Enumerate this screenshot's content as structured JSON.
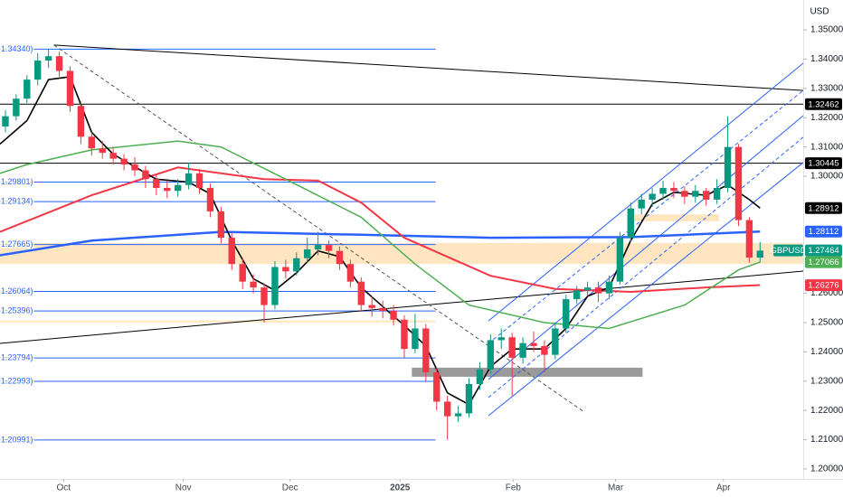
{
  "chart_data": {
    "type": "candlestick",
    "symbol": "GBPUSD",
    "currency": "USD",
    "up_color": "#089981",
    "down_color": "#f23645",
    "xlim": [
      -0.5,
      74
    ],
    "ylim": [
      1.1966,
      1.3602
    ],
    "yticks": [
      {
        "value": 1.35,
        "label": "1.35000"
      },
      {
        "value": 1.34,
        "label": "1.34000"
      },
      {
        "value": 1.33,
        "label": "1.33000"
      },
      {
        "value": 1.32,
        "label": "1.32000"
      },
      {
        "value": 1.31,
        "label": "1.31000"
      },
      {
        "value": 1.3,
        "label": "1.30000"
      },
      {
        "value": 1.26,
        "label": "1.26000"
      },
      {
        "value": 1.25,
        "label": "1.25000"
      },
      {
        "value": 1.24,
        "label": "1.24000"
      },
      {
        "value": 1.23,
        "label": "1.23000"
      },
      {
        "value": 1.22,
        "label": "1.22000"
      },
      {
        "value": 1.21,
        "label": "1.21000"
      },
      {
        "value": 1.2,
        "label": "1.20000"
      }
    ],
    "xticks": [
      {
        "value": 5.4,
        "label": "Oct"
      },
      {
        "value": 16.5,
        "label": "Nov"
      },
      {
        "value": 26.4,
        "label": "Dec"
      },
      {
        "value": 36.6,
        "label": "2025"
      },
      {
        "value": 47.1,
        "label": "Feb"
      },
      {
        "value": 56.6,
        "label": "Mar"
      },
      {
        "value": 66.6,
        "label": "Apr"
      }
    ],
    "ohlc": [
      [
        1.317,
        1.3225,
        1.315,
        1.3205
      ],
      [
        1.3205,
        1.328,
        1.319,
        1.3265
      ],
      [
        1.3265,
        1.3345,
        1.325,
        1.333
      ],
      [
        1.333,
        1.342,
        1.331,
        1.3395
      ],
      [
        1.3395,
        1.3434,
        1.337,
        1.341
      ],
      [
        1.341,
        1.3425,
        1.334,
        1.336
      ],
      [
        1.336,
        1.3375,
        1.322,
        1.324
      ],
      [
        1.324,
        1.3255,
        1.311,
        1.3135
      ],
      [
        1.3135,
        1.315,
        1.307,
        1.3095
      ],
      [
        1.3095,
        1.312,
        1.306,
        1.308
      ],
      [
        1.308,
        1.31,
        1.304,
        1.306
      ],
      [
        1.306,
        1.3075,
        1.302,
        1.304
      ],
      [
        1.304,
        1.3065,
        1.3,
        1.302
      ],
      [
        1.302,
        1.3035,
        1.296,
        1.299
      ],
      [
        1.299,
        1.3005,
        1.2935,
        1.296
      ],
      [
        1.296,
        1.2985,
        1.2925,
        1.295
      ],
      [
        1.295,
        1.299,
        1.293,
        1.297
      ],
      [
        1.297,
        1.3045,
        1.2955,
        1.301
      ],
      [
        1.301,
        1.3025,
        1.294,
        1.296
      ],
      [
        1.296,
        1.2975,
        1.286,
        1.288
      ],
      [
        1.288,
        1.2895,
        1.277,
        1.279
      ],
      [
        1.279,
        1.2805,
        1.268,
        1.27
      ],
      [
        1.27,
        1.272,
        1.2615,
        1.264
      ],
      [
        1.264,
        1.2665,
        1.26,
        1.262
      ],
      [
        1.262,
        1.2635,
        1.25,
        1.256
      ],
      [
        1.256,
        1.271,
        1.2545,
        1.269
      ],
      [
        1.269,
        1.2715,
        1.265,
        1.2675
      ],
      [
        1.2675,
        1.274,
        1.266,
        1.272
      ],
      [
        1.272,
        1.279,
        1.2705,
        1.275
      ],
      [
        1.275,
        1.281,
        1.273,
        1.2765
      ],
      [
        1.2765,
        1.278,
        1.272,
        1.2745
      ],
      [
        1.2745,
        1.276,
        1.268,
        1.27
      ],
      [
        1.27,
        1.2715,
        1.262,
        1.264
      ],
      [
        1.264,
        1.2655,
        1.254,
        1.256
      ],
      [
        1.256,
        1.259,
        1.252,
        1.255
      ],
      [
        1.255,
        1.2575,
        1.2515,
        1.254
      ],
      [
        1.254,
        1.256,
        1.249,
        1.251
      ],
      [
        1.251,
        1.2525,
        1.238,
        1.241
      ],
      [
        1.241,
        1.253,
        1.2395,
        1.248
      ],
      [
        1.248,
        1.2495,
        1.23,
        1.233
      ],
      [
        1.233,
        1.2345,
        1.22,
        1.223
      ],
      [
        1.223,
        1.225,
        1.21,
        1.218
      ],
      [
        1.218,
        1.2215,
        1.216,
        1.219
      ],
      [
        1.219,
        1.231,
        1.2175,
        1.229
      ],
      [
        1.229,
        1.2365,
        1.227,
        1.234
      ],
      [
        1.234,
        1.246,
        1.2325,
        1.244
      ],
      [
        1.244,
        1.248,
        1.241,
        1.245
      ],
      [
        1.245,
        1.2465,
        1.225,
        1.238
      ],
      [
        1.238,
        1.245,
        1.236,
        1.243
      ],
      [
        1.243,
        1.247,
        1.24,
        1.242
      ],
      [
        1.242,
        1.244,
        1.233,
        1.239
      ],
      [
        1.239,
        1.25,
        1.2375,
        1.248
      ],
      [
        1.248,
        1.2595,
        1.2465,
        1.258
      ],
      [
        1.258,
        1.2625,
        1.2565,
        1.261
      ],
      [
        1.261,
        1.264,
        1.259,
        1.262
      ],
      [
        1.262,
        1.264,
        1.257,
        1.26
      ],
      [
        1.26,
        1.266,
        1.258,
        1.264
      ],
      [
        1.264,
        1.281,
        1.263,
        1.279
      ],
      [
        1.279,
        1.291,
        1.2775,
        1.289
      ],
      [
        1.289,
        1.294,
        1.287,
        1.292
      ],
      [
        1.292,
        1.296,
        1.2895,
        1.294
      ],
      [
        1.294,
        1.2985,
        1.292,
        1.296
      ],
      [
        1.296,
        1.298,
        1.2925,
        1.295
      ],
      [
        1.295,
        1.2965,
        1.2905,
        1.293
      ],
      [
        1.293,
        1.297,
        1.291,
        1.295
      ],
      [
        1.295,
        1.296,
        1.29,
        1.292
      ],
      [
        1.292,
        1.299,
        1.2905,
        1.296
      ],
      [
        1.296,
        1.3205,
        1.2945,
        1.31
      ],
      [
        1.31,
        1.311,
        1.283,
        1.285
      ],
      [
        1.285,
        1.286,
        1.2705,
        1.2722
      ],
      [
        1.2722,
        1.2775,
        1.2705,
        1.2746
      ]
    ],
    "series": [
      {
        "color": "#2962ff",
        "width": 2.5,
        "x": [
          -0.5,
          8,
          20,
          33,
          45,
          58,
          70
        ],
        "values": [
          1.273,
          1.278,
          1.281,
          1.28,
          1.279,
          1.2792,
          1.2811
        ]
      },
      {
        "color": "#f23645",
        "width": 2,
        "x": [
          -0.5,
          8,
          16,
          24,
          29,
          33,
          37,
          45,
          51,
          58,
          65,
          70
        ],
        "values": [
          1.281,
          1.2935,
          1.303,
          1.299,
          1.2985,
          1.291,
          1.279,
          1.266,
          1.2615,
          1.2605,
          1.262,
          1.2628
        ]
      },
      {
        "color": "#4caf50",
        "width": 1.5,
        "x": [
          -0.5,
          2,
          8,
          16,
          20,
          26,
          33,
          38,
          43,
          50,
          56,
          63,
          68,
          70
        ],
        "values": [
          1.301,
          1.304,
          1.309,
          1.312,
          1.31,
          1.299,
          1.286,
          1.27,
          1.256,
          1.25,
          1.248,
          1.256,
          1.268,
          1.2707
        ]
      },
      {
        "color": "#000000",
        "width": 1.6,
        "x": [
          -0.5,
          2,
          4,
          6,
          8,
          10,
          14,
          17,
          19,
          21,
          23,
          25,
          27,
          29,
          31,
          33,
          35,
          37,
          39,
          41,
          43,
          45,
          47,
          50,
          52,
          54,
          56,
          58,
          60,
          62,
          65,
          67,
          69,
          70
        ],
        "values": [
          1.311,
          1.319,
          1.333,
          1.334,
          1.315,
          1.3075,
          1.299,
          1.298,
          1.294,
          1.278,
          1.265,
          1.261,
          1.267,
          1.2745,
          1.2725,
          1.262,
          1.2555,
          1.249,
          1.242,
          1.226,
          1.222,
          1.235,
          1.241,
          1.241,
          1.248,
          1.259,
          1.262,
          1.278,
          1.2905,
          1.2945,
          1.2935,
          1.297,
          1.292,
          1.2891
        ]
      }
    ],
    "lines": [
      {
        "color": "#000000",
        "dash": false,
        "x": [
          4.5,
          74
        ],
        "values": [
          1.3448,
          1.3293
        ]
      },
      {
        "color": "#000000",
        "dash": false,
        "x": [
          -0.5,
          74
        ],
        "values": [
          1.2429,
          1.2676
        ]
      },
      {
        "color": "#555555",
        "dash": true,
        "x": [
          4.5,
          53.6
        ],
        "values": [
          1.3448,
          1.2197
        ]
      },
      {
        "color": "#2962ff",
        "dash": false,
        "x": [
          44.8,
          74
        ],
        "values": [
          1.2506,
          1.3386
        ]
      },
      {
        "color": "#2962ff",
        "dash": true,
        "x": [
          44.8,
          74
        ],
        "values": [
          1.2429,
          1.3293
        ]
      },
      {
        "color": "#2962ff",
        "dash": false,
        "x": [
          44.8,
          74
        ],
        "values": [
          1.2306,
          1.3207
        ]
      },
      {
        "color": "#2962ff",
        "dash": true,
        "x": [
          44.8,
          74
        ],
        "values": [
          1.2244,
          1.3133
        ]
      },
      {
        "color": "#2962ff",
        "dash": false,
        "x": [
          44.8,
          74
        ],
        "values": [
          1.2182,
          1.3047
        ]
      }
    ],
    "zones": [
      {
        "color": "rgba(255,183,77,0.35)",
        "x": [
          -0.5,
          74
        ],
        "y": [
          1.27,
          1.2772
        ]
      },
      {
        "color": "rgba(255,183,77,0.3)",
        "x": [
          -0.5,
          39.9
        ],
        "y": [
          1.25,
          1.2508
        ]
      },
      {
        "color": "rgba(120,120,120,0.75)",
        "x": [
          37.7,
          59.1
        ],
        "y": [
          1.2315,
          1.2346
        ]
      },
      {
        "color": "rgba(255,183,77,0.35)",
        "x": [
          58.2,
          66.2
        ],
        "y": [
          1.2846,
          1.287
        ]
      }
    ],
    "levels": [
      {
        "value": 1.3434,
        "label": "1.34340)",
        "x": [
          -0.5,
          39.9
        ]
      },
      {
        "value": 1.29801,
        "label": "1.29801)",
        "x": [
          -0.5,
          39.9
        ]
      },
      {
        "value": 1.29134,
        "label": "1.29134)",
        "x": [
          -0.5,
          39.9
        ]
      },
      {
        "value": 1.27665,
        "label": "1.27665)",
        "x": [
          -0.5,
          39.9
        ]
      },
      {
        "value": 1.26064,
        "label": "1.26064)",
        "x": [
          -0.5,
          39.9
        ]
      },
      {
        "value": 1.25396,
        "label": "1.25396)",
        "x": [
          -0.5,
          39.9
        ]
      },
      {
        "value": 1.23794,
        "label": "1.23794)",
        "x": [
          -0.5,
          39.9
        ]
      },
      {
        "value": 1.22993,
        "label": "1.22993)",
        "x": [
          -0.5,
          39.9
        ]
      },
      {
        "value": 1.20991,
        "label": "1.20991)",
        "x": [
          -0.5,
          39.9
        ]
      }
    ],
    "level_color": "#2962ff",
    "price_tags": [
      {
        "value": 1.32462,
        "label": "1.32462",
        "color": "#000000",
        "line": true
      },
      {
        "value": 1.30445,
        "label": "1.30445",
        "color": "#000000",
        "line": true
      },
      {
        "value": 1.28912,
        "label": "1.28912",
        "color": "#000000",
        "line": false
      },
      {
        "value": 1.28112,
        "label": "1.28112",
        "color": "#2962ff",
        "line": false
      },
      {
        "value": 1.27464,
        "label": "1.27464",
        "color": "#089981",
        "line": false,
        "title": "GBPUSD"
      },
      {
        "value": 1.27066,
        "label": "1.27066",
        "color": "#4caf50",
        "line": false
      },
      {
        "value": 1.26276,
        "label": "1.26276",
        "color": "#f23645",
        "line": false
      }
    ]
  }
}
